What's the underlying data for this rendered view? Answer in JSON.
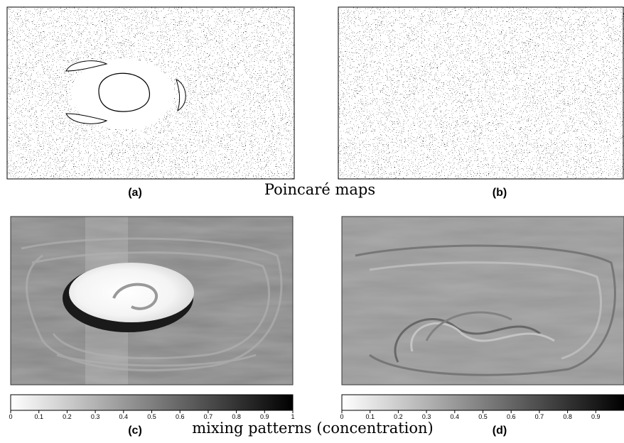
{
  "panels": [
    {
      "label": "(a)"
    },
    {
      "label": "(b)"
    },
    {
      "label": "(c)"
    },
    {
      "label": "(d)"
    }
  ],
  "captions": [
    "Poincaré maps",
    "mixing patterns (concentration)"
  ],
  "colorbars": [
    {
      "range": [
        0,
        1
      ],
      "ticks": [
        0,
        0.1,
        0.2,
        0.3,
        0.4,
        0.5,
        0.6,
        0.7,
        0.8,
        0.9,
        1
      ]
    },
    {
      "range": [
        0,
        1
      ],
      "ticks": [
        0,
        0.1,
        0.2,
        0.3,
        0.4,
        0.5,
        0.6,
        0.7,
        0.8,
        0.9
      ]
    }
  ]
}
